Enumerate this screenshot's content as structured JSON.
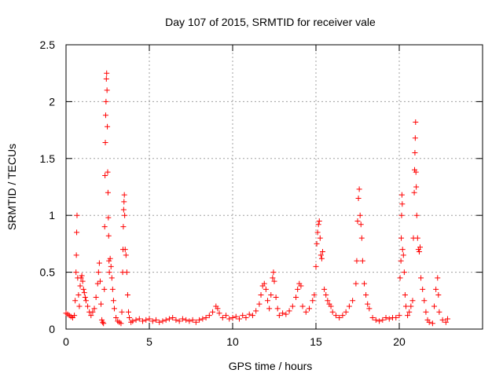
{
  "chart_data": {
    "type": "scatter",
    "title": "Day 107 of 2015, SRMTID for receiver vale",
    "xlabel": "GPS time / hours",
    "ylabel": "SRMTID / TECUs",
    "xlim": [
      0,
      25
    ],
    "ylim": [
      0,
      2.5
    ],
    "x_ticks": [
      0,
      5,
      10,
      15,
      20
    ],
    "x_tick_labels": [
      "0",
      "5",
      "10",
      "15",
      "20"
    ],
    "y_ticks": [
      0,
      0.5,
      1,
      1.5,
      2,
      2.5
    ],
    "y_tick_labels": [
      "0",
      "0.5",
      "1",
      "1.5",
      "2",
      "2.5"
    ],
    "grid": true,
    "marker": "+",
    "color": "#ff0000",
    "series": [
      {
        "name": "SRMTID",
        "points": [
          [
            0.0,
            0.14
          ],
          [
            0.1,
            0.13
          ],
          [
            0.2,
            0.12
          ],
          [
            0.3,
            0.11
          ],
          [
            0.4,
            0.1
          ],
          [
            0.5,
            0.12
          ],
          [
            0.55,
            0.25
          ],
          [
            0.6,
            0.5
          ],
          [
            0.62,
            0.65
          ],
          [
            0.64,
            0.85
          ],
          [
            0.66,
            1.0
          ],
          [
            0.7,
            0.45
          ],
          [
            0.75,
            0.3
          ],
          [
            0.8,
            0.2
          ],
          [
            0.85,
            0.38
          ],
          [
            0.9,
            0.45
          ],
          [
            0.95,
            0.47
          ],
          [
            1.0,
            0.42
          ],
          [
            1.05,
            0.35
          ],
          [
            1.1,
            0.32
          ],
          [
            1.15,
            0.28
          ],
          [
            1.2,
            0.25
          ],
          [
            1.3,
            0.2
          ],
          [
            1.4,
            0.15
          ],
          [
            1.5,
            0.12
          ],
          [
            1.6,
            0.15
          ],
          [
            1.7,
            0.18
          ],
          [
            1.8,
            0.28
          ],
          [
            1.9,
            0.4
          ],
          [
            1.95,
            0.5
          ],
          [
            2.0,
            0.58
          ],
          [
            2.05,
            0.42
          ],
          [
            2.1,
            0.22
          ],
          [
            2.15,
            0.08
          ],
          [
            2.2,
            0.06
          ],
          [
            2.25,
            0.05
          ],
          [
            2.3,
            0.35
          ],
          [
            2.32,
            0.9
          ],
          [
            2.34,
            1.35
          ],
          [
            2.36,
            1.64
          ],
          [
            2.38,
            1.88
          ],
          [
            2.4,
            2.0
          ],
          [
            2.42,
            2.2
          ],
          [
            2.44,
            2.25
          ],
          [
            2.46,
            2.1
          ],
          [
            2.48,
            1.78
          ],
          [
            2.5,
            1.38
          ],
          [
            2.52,
            1.2
          ],
          [
            2.54,
            0.98
          ],
          [
            2.56,
            0.82
          ],
          [
            2.58,
            0.6
          ],
          [
            2.6,
            0.5
          ],
          [
            2.65,
            0.62
          ],
          [
            2.7,
            0.55
          ],
          [
            2.75,
            0.45
          ],
          [
            2.8,
            0.35
          ],
          [
            2.85,
            0.25
          ],
          [
            2.9,
            0.18
          ],
          [
            3.0,
            0.1
          ],
          [
            3.1,
            0.07
          ],
          [
            3.2,
            0.06
          ],
          [
            3.3,
            0.05
          ],
          [
            3.35,
            0.15
          ],
          [
            3.4,
            0.5
          ],
          [
            3.42,
            0.7
          ],
          [
            3.44,
            0.9
          ],
          [
            3.46,
            1.05
          ],
          [
            3.48,
            1.12
          ],
          [
            3.5,
            1.18
          ],
          [
            3.52,
            1.0
          ],
          [
            3.55,
            0.7
          ],
          [
            3.6,
            0.65
          ],
          [
            3.65,
            0.5
          ],
          [
            3.7,
            0.3
          ],
          [
            3.75,
            0.15
          ],
          [
            3.8,
            0.1
          ],
          [
            3.9,
            0.06
          ],
          [
            4.0,
            0.07
          ],
          [
            4.2,
            0.08
          ],
          [
            4.4,
            0.09
          ],
          [
            4.6,
            0.07
          ],
          [
            4.8,
            0.08
          ],
          [
            5.0,
            0.09
          ],
          [
            5.2,
            0.07
          ],
          [
            5.4,
            0.08
          ],
          [
            5.6,
            0.06
          ],
          [
            5.8,
            0.07
          ],
          [
            6.0,
            0.08
          ],
          [
            6.2,
            0.09
          ],
          [
            6.4,
            0.1
          ],
          [
            6.6,
            0.08
          ],
          [
            6.8,
            0.07
          ],
          [
            7.0,
            0.09
          ],
          [
            7.2,
            0.08
          ],
          [
            7.4,
            0.07
          ],
          [
            7.6,
            0.08
          ],
          [
            7.8,
            0.06
          ],
          [
            8.0,
            0.08
          ],
          [
            8.2,
            0.09
          ],
          [
            8.4,
            0.1
          ],
          [
            8.6,
            0.12
          ],
          [
            8.8,
            0.15
          ],
          [
            9.0,
            0.2
          ],
          [
            9.1,
            0.18
          ],
          [
            9.2,
            0.14
          ],
          [
            9.4,
            0.1
          ],
          [
            9.6,
            0.12
          ],
          [
            9.8,
            0.09
          ],
          [
            10.0,
            0.1
          ],
          [
            10.2,
            0.11
          ],
          [
            10.4,
            0.09
          ],
          [
            10.6,
            0.12
          ],
          [
            10.8,
            0.1
          ],
          [
            11.0,
            0.13
          ],
          [
            11.2,
            0.12
          ],
          [
            11.4,
            0.16
          ],
          [
            11.6,
            0.22
          ],
          [
            11.7,
            0.3
          ],
          [
            11.8,
            0.38
          ],
          [
            11.9,
            0.4
          ],
          [
            12.0,
            0.35
          ],
          [
            12.1,
            0.25
          ],
          [
            12.2,
            0.18
          ],
          [
            12.3,
            0.3
          ],
          [
            12.4,
            0.45
          ],
          [
            12.45,
            0.5
          ],
          [
            12.5,
            0.42
          ],
          [
            12.6,
            0.28
          ],
          [
            12.7,
            0.18
          ],
          [
            12.8,
            0.12
          ],
          [
            13.0,
            0.14
          ],
          [
            13.2,
            0.13
          ],
          [
            13.4,
            0.16
          ],
          [
            13.6,
            0.2
          ],
          [
            13.8,
            0.28
          ],
          [
            13.9,
            0.35
          ],
          [
            14.0,
            0.4
          ],
          [
            14.1,
            0.38
          ],
          [
            14.2,
            0.2
          ],
          [
            14.4,
            0.15
          ],
          [
            14.6,
            0.18
          ],
          [
            14.8,
            0.25
          ],
          [
            14.9,
            0.3
          ],
          [
            15.0,
            0.55
          ],
          [
            15.05,
            0.75
          ],
          [
            15.1,
            0.85
          ],
          [
            15.15,
            0.92
          ],
          [
            15.2,
            0.95
          ],
          [
            15.25,
            0.8
          ],
          [
            15.3,
            0.65
          ],
          [
            15.35,
            0.62
          ],
          [
            15.4,
            0.68
          ],
          [
            15.5,
            0.35
          ],
          [
            15.6,
            0.3
          ],
          [
            15.7,
            0.25
          ],
          [
            15.8,
            0.22
          ],
          [
            15.9,
            0.2
          ],
          [
            16.0,
            0.15
          ],
          [
            16.2,
            0.12
          ],
          [
            16.4,
            0.1
          ],
          [
            16.6,
            0.12
          ],
          [
            16.8,
            0.15
          ],
          [
            17.0,
            0.2
          ],
          [
            17.2,
            0.25
          ],
          [
            17.4,
            0.4
          ],
          [
            17.45,
            0.6
          ],
          [
            17.5,
            0.95
          ],
          [
            17.55,
            1.15
          ],
          [
            17.6,
            1.23
          ],
          [
            17.65,
            1.0
          ],
          [
            17.7,
            0.92
          ],
          [
            17.75,
            0.8
          ],
          [
            17.8,
            0.6
          ],
          [
            17.9,
            0.4
          ],
          [
            18.0,
            0.3
          ],
          [
            18.1,
            0.22
          ],
          [
            18.2,
            0.18
          ],
          [
            18.4,
            0.1
          ],
          [
            18.6,
            0.08
          ],
          [
            18.8,
            0.07
          ],
          [
            19.0,
            0.08
          ],
          [
            19.2,
            0.1
          ],
          [
            19.4,
            0.09
          ],
          [
            19.6,
            0.1
          ],
          [
            19.8,
            0.1
          ],
          [
            20.0,
            0.12
          ],
          [
            20.05,
            0.45
          ],
          [
            20.1,
            0.6
          ],
          [
            20.12,
            0.8
          ],
          [
            20.14,
            1.0
          ],
          [
            20.16,
            1.18
          ],
          [
            20.18,
            1.1
          ],
          [
            20.2,
            0.7
          ],
          [
            20.25,
            0.65
          ],
          [
            20.3,
            0.5
          ],
          [
            20.35,
            0.3
          ],
          [
            20.4,
            0.2
          ],
          [
            20.5,
            0.12
          ],
          [
            20.6,
            0.15
          ],
          [
            20.7,
            0.2
          ],
          [
            20.8,
            0.25
          ],
          [
            20.85,
            0.8
          ],
          [
            20.9,
            1.2
          ],
          [
            20.92,
            1.4
          ],
          [
            20.94,
            1.55
          ],
          [
            20.96,
            1.68
          ],
          [
            20.98,
            1.82
          ],
          [
            21.0,
            1.38
          ],
          [
            21.02,
            1.25
          ],
          [
            21.05,
            1.0
          ],
          [
            21.1,
            0.8
          ],
          [
            21.15,
            0.7
          ],
          [
            21.2,
            0.68
          ],
          [
            21.25,
            0.72
          ],
          [
            21.3,
            0.45
          ],
          [
            21.4,
            0.35
          ],
          [
            21.5,
            0.25
          ],
          [
            21.6,
            0.15
          ],
          [
            21.7,
            0.08
          ],
          [
            21.8,
            0.06
          ],
          [
            22.0,
            0.05
          ],
          [
            22.1,
            0.2
          ],
          [
            22.2,
            0.35
          ],
          [
            22.3,
            0.45
          ],
          [
            22.35,
            0.3
          ],
          [
            22.4,
            0.15
          ],
          [
            22.6,
            0.08
          ],
          [
            22.8,
            0.06
          ],
          [
            22.9,
            0.09
          ]
        ]
      }
    ]
  }
}
